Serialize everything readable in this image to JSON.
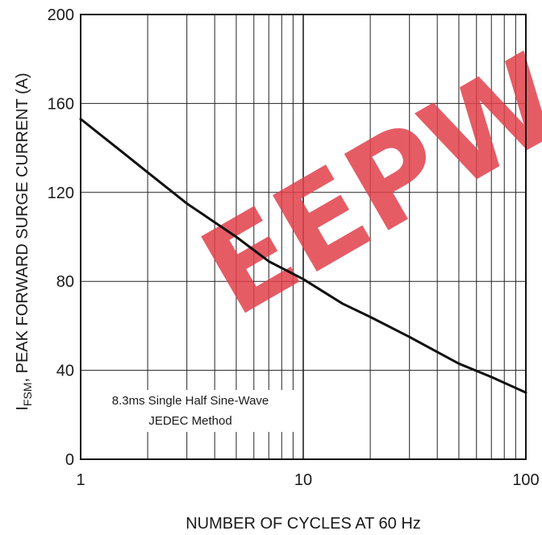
{
  "chart_data": {
    "type": "line",
    "xlabel": "NUMBER OF CYCLES AT 60 Hz",
    "ylabel_main": "I",
    "ylabel_sub": "FSM",
    "ylabel_rest": ", PEAK FORWARD SURGE CURRENT (A)",
    "x_scale": "log",
    "xlim": [
      1,
      100
    ],
    "ylim": [
      0,
      200
    ],
    "x_ticks": [
      1,
      10,
      100
    ],
    "x_tick_labels": [
      "1",
      "10",
      "100"
    ],
    "y_ticks": [
      0,
      40,
      80,
      120,
      160,
      200
    ],
    "y_tick_labels": [
      "0",
      "40",
      "80",
      "120",
      "160",
      "200"
    ],
    "grid": true,
    "annotation": [
      "8.3ms Single Half Sine-Wave",
      "JEDEC Method"
    ],
    "watermark": "EEPW",
    "series": [
      {
        "x": [
          1,
          1.5,
          2,
          3,
          5,
          7,
          10,
          15,
          20,
          30,
          50,
          70,
          100
        ],
        "y": [
          153,
          139,
          129,
          115,
          100,
          89,
          81,
          70,
          64,
          55,
          43,
          37,
          30
        ]
      }
    ],
    "colors": {
      "line": "#111111",
      "grid": "#222222",
      "watermark": "#e0404a"
    }
  }
}
